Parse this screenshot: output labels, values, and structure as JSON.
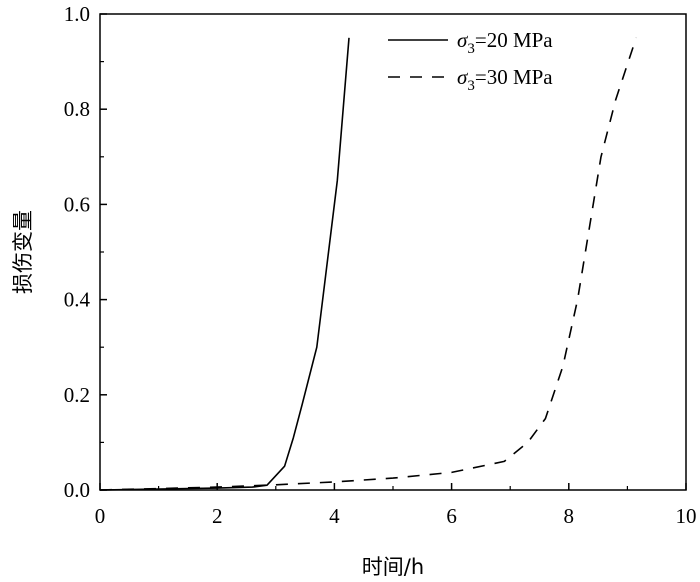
{
  "chart_data": {
    "type": "line",
    "xlabel": "时间/h",
    "ylabel": "损伤变量",
    "xlim": [
      0,
      10
    ],
    "ylim": [
      0,
      1.0
    ],
    "x_ticks": [
      "0",
      "2",
      "4",
      "6",
      "8",
      "10"
    ],
    "y_ticks": [
      "0.0",
      "0.2",
      "0.4",
      "0.6",
      "0.8",
      "1.0"
    ],
    "grid": false,
    "legend_position": "top-right",
    "series": [
      {
        "name": "σ3=20 MPa",
        "legend": {
          "sym": "σ",
          "sub": "3",
          "rest": "=20 MPa"
        },
        "style": "solid",
        "color": "#000000",
        "points": [
          [
            0,
            0.0
          ],
          [
            1.0,
            0.002
          ],
          [
            2.0,
            0.004
          ],
          [
            2.6,
            0.006
          ],
          [
            2.85,
            0.01
          ],
          [
            3.0,
            0.03
          ],
          [
            3.15,
            0.05
          ],
          [
            3.3,
            0.11
          ],
          [
            3.45,
            0.18
          ],
          [
            3.7,
            0.3
          ],
          [
            3.85,
            0.45
          ],
          [
            4.05,
            0.65
          ],
          [
            4.25,
            0.95
          ]
        ]
      },
      {
        "name": "σ3=30 MPa",
        "legend": {
          "sym": "σ",
          "sub": "3",
          "rest": "=30 MPa"
        },
        "style": "dashed",
        "color": "#000000",
        "points": [
          [
            0,
            0.0
          ],
          [
            1.0,
            0.003
          ],
          [
            2.0,
            0.006
          ],
          [
            3.0,
            0.011
          ],
          [
            4.0,
            0.017
          ],
          [
            5.0,
            0.025
          ],
          [
            6.0,
            0.037
          ],
          [
            6.9,
            0.06
          ],
          [
            7.3,
            0.1
          ],
          [
            7.6,
            0.15
          ],
          [
            7.9,
            0.26
          ],
          [
            8.15,
            0.4
          ],
          [
            8.35,
            0.55
          ],
          [
            8.55,
            0.7
          ],
          [
            8.8,
            0.82
          ],
          [
            9.15,
            0.95
          ]
        ]
      }
    ]
  }
}
